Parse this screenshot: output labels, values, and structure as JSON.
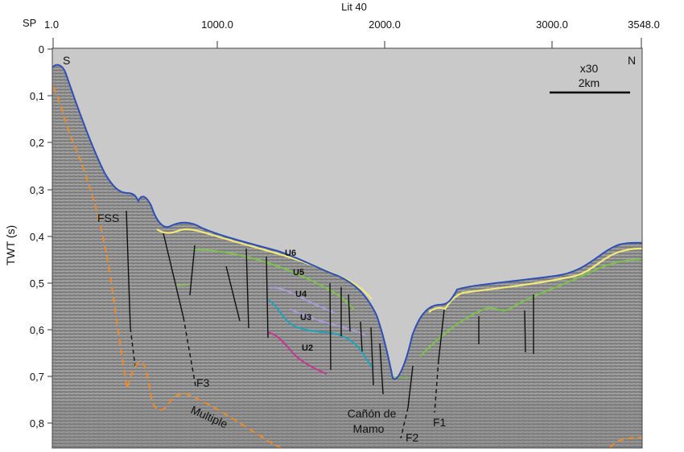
{
  "header": {
    "line_name": "Lit 40",
    "sp_label": "SP"
  },
  "sp_ticks": [
    "1.0",
    "1000.0",
    "2000.0",
    "3000.0",
    "3548.0"
  ],
  "y_axis": {
    "label": "TWT (s)",
    "ticks": [
      "0",
      "0,1",
      "0,2",
      "0,3",
      "0,4",
      "0,5",
      "0,6",
      "0,7",
      "0,8"
    ]
  },
  "orientation": {
    "south": "S",
    "north": "N"
  },
  "scale": {
    "exaggeration": "x30",
    "distance": "2km"
  },
  "unit_labels": [
    "U6",
    "U5",
    "U4",
    "U3",
    "U2"
  ],
  "fault_labels": [
    "FSS",
    "F3",
    "F1",
    "F2"
  ],
  "feature_labels": {
    "multiple": "Multiple",
    "canyon_line1": "Cañón de",
    "canyon_line2": "Mamo"
  },
  "colors": {
    "seafloor": "#2f4fb5",
    "u6": "#f2ea7a",
    "u5": "#7cc24a",
    "u4": "#a89bd6",
    "u3": "#1fa3b8",
    "u2": "#c2388f",
    "multiple": "#f08a24",
    "water": "#c9c9c9"
  }
}
